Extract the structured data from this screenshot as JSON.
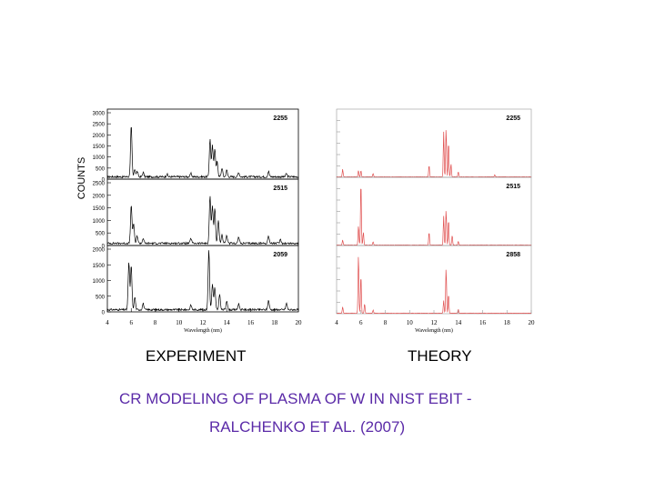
{
  "labels": {
    "ylabel": "COUNTS",
    "left_title": "EXPERIMENT",
    "right_title": "THEORY",
    "caption_line1": "CR MODELING OF PLASMA OF W IN NIST EBIT -",
    "caption_line2": "RALCHENKO ET AL. (2007)"
  },
  "colors": {
    "experiment": "#000000",
    "theory": "#e05050",
    "caption": "#5b2ba8"
  },
  "chart_data": [
    {
      "type": "line",
      "title": "EXPERIMENT",
      "xlabel": "Wavelength (nm)",
      "xlim": [
        4,
        20
      ],
      "xticks": [
        "4",
        "6",
        "8",
        "10",
        "12",
        "14",
        "16",
        "18",
        "20"
      ],
      "panels": [
        {
          "name": "2255",
          "ylim": [
            0,
            3000
          ],
          "yticks": [
            "0",
            "500",
            "1000",
            "1500",
            "2000",
            "2500",
            "3000"
          ],
          "peaks": [
            [
              6.0,
              2300
            ],
            [
              6.3,
              350
            ],
            [
              6.5,
              250
            ],
            [
              7.0,
              200
            ],
            [
              9.0,
              120
            ],
            [
              11.0,
              150
            ],
            [
              12.6,
              1700
            ],
            [
              12.8,
              1400
            ],
            [
              13.0,
              1300
            ],
            [
              13.2,
              700
            ],
            [
              13.6,
              400
            ],
            [
              14.0,
              300
            ],
            [
              15.0,
              200
            ],
            [
              17.5,
              250
            ],
            [
              19.0,
              150
            ]
          ]
        },
        {
          "name": "2515",
          "ylim": [
            0,
            2500
          ],
          "yticks": [
            "0",
            "500",
            "1000",
            "1500",
            "2000",
            "2500"
          ],
          "peaks": [
            [
              6.0,
              1500
            ],
            [
              6.2,
              800
            ],
            [
              6.5,
              300
            ],
            [
              7.0,
              200
            ],
            [
              11.0,
              200
            ],
            [
              12.6,
              1900
            ],
            [
              12.8,
              1500
            ],
            [
              13.0,
              1400
            ],
            [
              13.3,
              900
            ],
            [
              13.6,
              350
            ],
            [
              14.0,
              300
            ],
            [
              15.0,
              250
            ],
            [
              17.5,
              300
            ],
            [
              18.5,
              150
            ]
          ]
        },
        {
          "name": "2059",
          "ylim": [
            0,
            2000
          ],
          "yticks": [
            "0",
            "500",
            "1000",
            "1500",
            "2000"
          ],
          "peaks": [
            [
              5.8,
              1500
            ],
            [
              6.0,
              1400
            ],
            [
              6.3,
              400
            ],
            [
              7.0,
              200
            ],
            [
              11.0,
              150
            ],
            [
              12.5,
              1900
            ],
            [
              12.8,
              800
            ],
            [
              13.0,
              700
            ],
            [
              13.4,
              500
            ],
            [
              14.0,
              300
            ],
            [
              15.0,
              200
            ],
            [
              17.5,
              300
            ],
            [
              19.0,
              200
            ]
          ]
        }
      ]
    },
    {
      "type": "line",
      "title": "THEORY",
      "xlabel": "Wavelength (nm)",
      "xlim": [
        4,
        20
      ],
      "xticks": [
        "4",
        "6",
        "8",
        "10",
        "12",
        "14",
        "16",
        "18",
        "20"
      ],
      "panels": [
        {
          "name": "2255",
          "ylim": [
            0,
            1
          ],
          "peaks": [
            [
              4.5,
              0.12
            ],
            [
              5.8,
              0.1
            ],
            [
              6.0,
              0.1
            ],
            [
              7.0,
              0.05
            ],
            [
              11.6,
              0.18
            ],
            [
              12.8,
              0.7
            ],
            [
              13.0,
              0.75
            ],
            [
              13.2,
              0.55
            ],
            [
              13.4,
              0.2
            ],
            [
              14.0,
              0.08
            ],
            [
              17.0,
              0.03
            ]
          ]
        },
        {
          "name": "2515",
          "ylim": [
            0,
            1
          ],
          "peaks": [
            [
              4.5,
              0.08
            ],
            [
              5.8,
              0.3
            ],
            [
              6.0,
              1.0
            ],
            [
              6.2,
              0.2
            ],
            [
              7.0,
              0.05
            ],
            [
              11.6,
              0.2
            ],
            [
              12.8,
              0.45
            ],
            [
              13.0,
              0.55
            ],
            [
              13.2,
              0.4
            ],
            [
              13.5,
              0.15
            ],
            [
              14.0,
              0.06
            ]
          ]
        },
        {
          "name": "2858",
          "ylim": [
            0,
            1
          ],
          "peaks": [
            [
              4.5,
              0.1
            ],
            [
              5.8,
              0.9
            ],
            [
              6.0,
              0.6
            ],
            [
              6.3,
              0.15
            ],
            [
              7.0,
              0.05
            ],
            [
              12.8,
              0.2
            ],
            [
              13.0,
              0.7
            ],
            [
              13.2,
              0.3
            ],
            [
              14.0,
              0.06
            ]
          ]
        }
      ]
    }
  ]
}
